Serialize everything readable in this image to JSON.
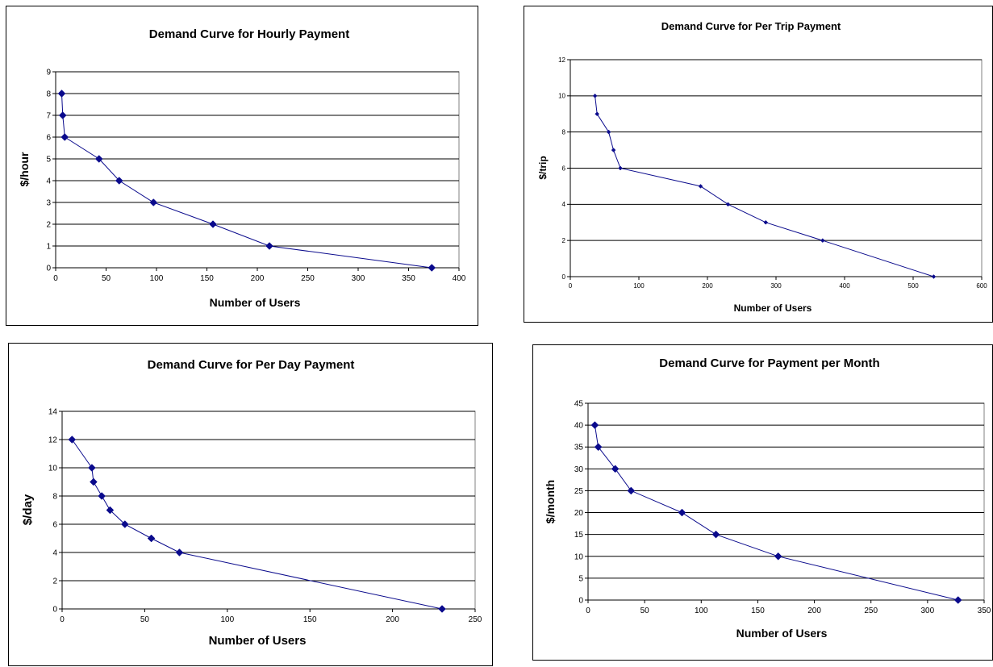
{
  "colors": {
    "series": "#0a0a8c",
    "grid": "#000000",
    "plot_border": "#808080"
  },
  "chart_data": [
    {
      "type": "line",
      "title": "Demand Curve for Hourly Payment",
      "xlabel": "Number of Users",
      "ylabel": "$/hour",
      "xlim": [
        0,
        400
      ],
      "xticks": [
        0,
        50,
        100,
        150,
        200,
        250,
        300,
        350,
        400
      ],
      "ylim": [
        0,
        9
      ],
      "yticks": [
        0,
        1,
        2,
        3,
        4,
        5,
        6,
        7,
        8,
        9
      ],
      "grid": true,
      "legend": "none",
      "marker": "diamond",
      "x": [
        6,
        7,
        9,
        43,
        63,
        97,
        156,
        212,
        373
      ],
      "y": [
        8,
        7,
        6,
        5,
        4,
        3,
        2,
        1,
        0
      ]
    },
    {
      "type": "line",
      "title": "Demand Curve for Per Trip Payment",
      "xlabel": "Number of Users",
      "ylabel": "$/trip",
      "xlim": [
        0,
        600
      ],
      "xticks": [
        0,
        100,
        200,
        300,
        400,
        500,
        600
      ],
      "ylim": [
        0,
        12
      ],
      "yticks": [
        0,
        2,
        4,
        6,
        8,
        10,
        12
      ],
      "grid": true,
      "legend": "none",
      "marker": "diamond-small",
      "x": [
        36,
        39,
        56,
        63,
        73,
        190,
        230,
        285,
        368,
        530
      ],
      "y": [
        10,
        9,
        8,
        7,
        6,
        5,
        4,
        3,
        2,
        0
      ]
    },
    {
      "type": "line",
      "title": "Demand Curve for Per Day Payment",
      "xlabel": "Number of Users",
      "ylabel": "$/day",
      "xlim": [
        0,
        250
      ],
      "xticks": [
        0,
        50,
        100,
        150,
        200,
        250
      ],
      "ylim": [
        0,
        14
      ],
      "yticks": [
        0,
        2,
        4,
        6,
        8,
        10,
        12,
        14
      ],
      "grid": true,
      "legend": "none",
      "marker": "diamond",
      "x": [
        6,
        18,
        19,
        24,
        29,
        38,
        54,
        71,
        230
      ],
      "y": [
        12,
        10,
        9,
        8,
        7,
        6,
        5,
        4,
        0
      ]
    },
    {
      "type": "line",
      "title": "Demand Curve for Payment per Month",
      "xlabel": "Number of Users",
      "ylabel": "$/month",
      "xlim": [
        0,
        350
      ],
      "xticks": [
        0,
        50,
        100,
        150,
        200,
        250,
        300,
        350
      ],
      "ylim": [
        0,
        45
      ],
      "yticks": [
        0,
        5,
        10,
        15,
        20,
        25,
        30,
        35,
        40,
        45
      ],
      "grid": true,
      "legend": "none",
      "marker": "diamond",
      "x": [
        6,
        9,
        24,
        38,
        83,
        113,
        168,
        327
      ],
      "y": [
        40,
        35,
        30,
        25,
        20,
        15,
        10,
        0
      ]
    }
  ]
}
